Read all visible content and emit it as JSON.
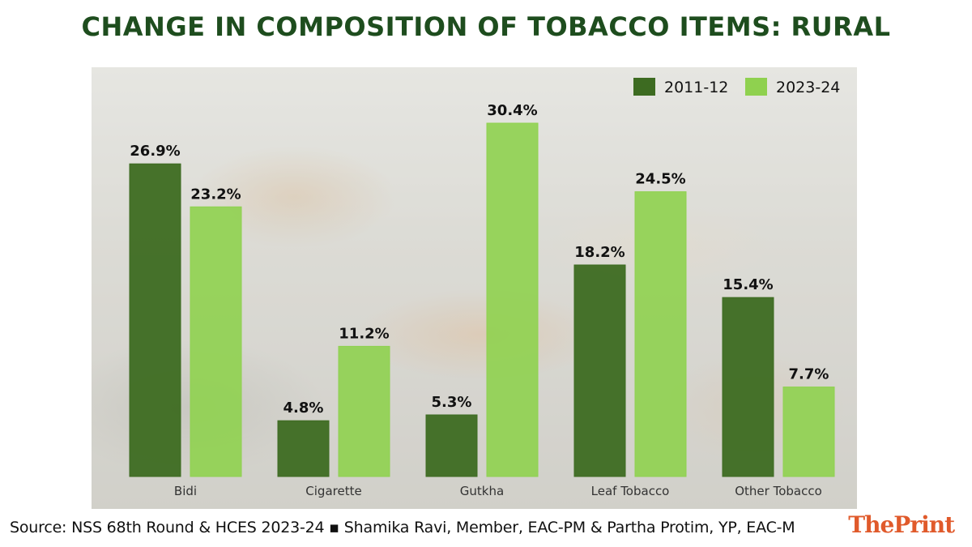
{
  "chart_data": {
    "type": "bar",
    "title": "CHANGE IN COMPOSITION OF TOBACCO ITEMS: RURAL",
    "categories": [
      "Bidi",
      "Cigarette",
      "Gutkha",
      "Leaf Tobacco",
      "Other Tobacco"
    ],
    "series": [
      {
        "name": "2011-12",
        "values": [
          26.9,
          4.8,
          5.3,
          18.2,
          15.4
        ],
        "labels": [
          "26.9%",
          "4.8%",
          "5.3%",
          "18.2%",
          "15.4%"
        ],
        "color": "#3d6b21"
      },
      {
        "name": "2023-24",
        "values": [
          23.2,
          11.2,
          30.4,
          24.5,
          7.7
        ],
        "labels": [
          "23.2%",
          "11.2%",
          "30.4%",
          "24.5%",
          "7.7%"
        ],
        "color": "#8fd14f"
      }
    ],
    "xlabel": "",
    "ylabel": "",
    "ylim": [
      0,
      33
    ],
    "grid": false,
    "legend": "top-right"
  },
  "footer": {
    "source": "Source: NSS 68th Round & HCES 2023-24 ▪ Shamika Ravi, Member, EAC-PM & Partha Protim, YP, EAC-M",
    "brand_the": "The",
    "brand_print": "Print"
  }
}
